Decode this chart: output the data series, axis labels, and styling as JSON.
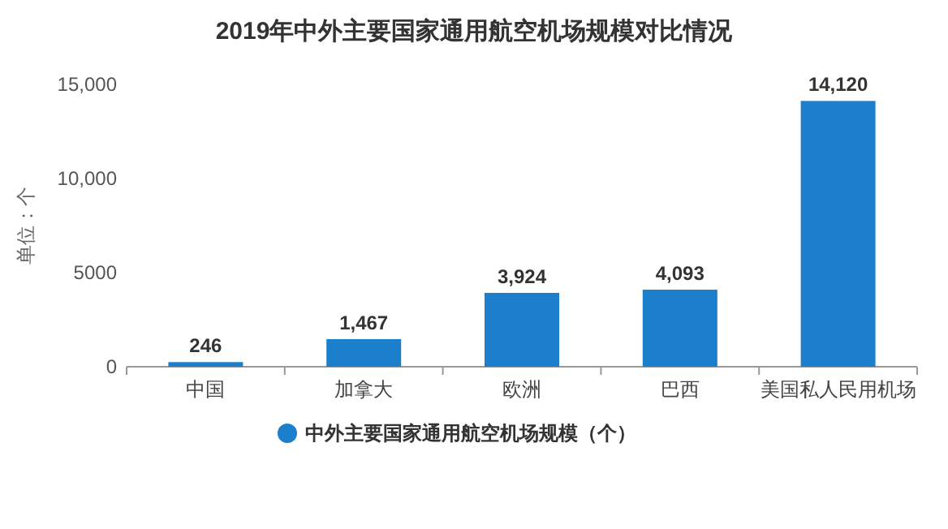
{
  "chart_data": {
    "type": "bar",
    "title": "2019年中外主要国家通用航空机场规模对比情况",
    "ylabel": "单位：个",
    "categories": [
      "中国",
      "加拿大",
      "欧洲",
      "巴西",
      "美国私人民用机场"
    ],
    "series": [
      {
        "name": "中外主要国家通用航空机场规模（个）",
        "color": "#1b7fcc",
        "values": [
          246,
          1467,
          3924,
          4093,
          14120
        ]
      }
    ],
    "value_labels": [
      "246",
      "1,467",
      "3,924",
      "4,093",
      "14,120"
    ],
    "ylim": [
      0,
      15000
    ],
    "yticks": [
      0,
      5000,
      {
        "value": 10000,
        "label": "10,000"
      },
      {
        "value": 15000,
        "label": "15,000"
      }
    ],
    "grid": false,
    "legend": "bottom"
  }
}
